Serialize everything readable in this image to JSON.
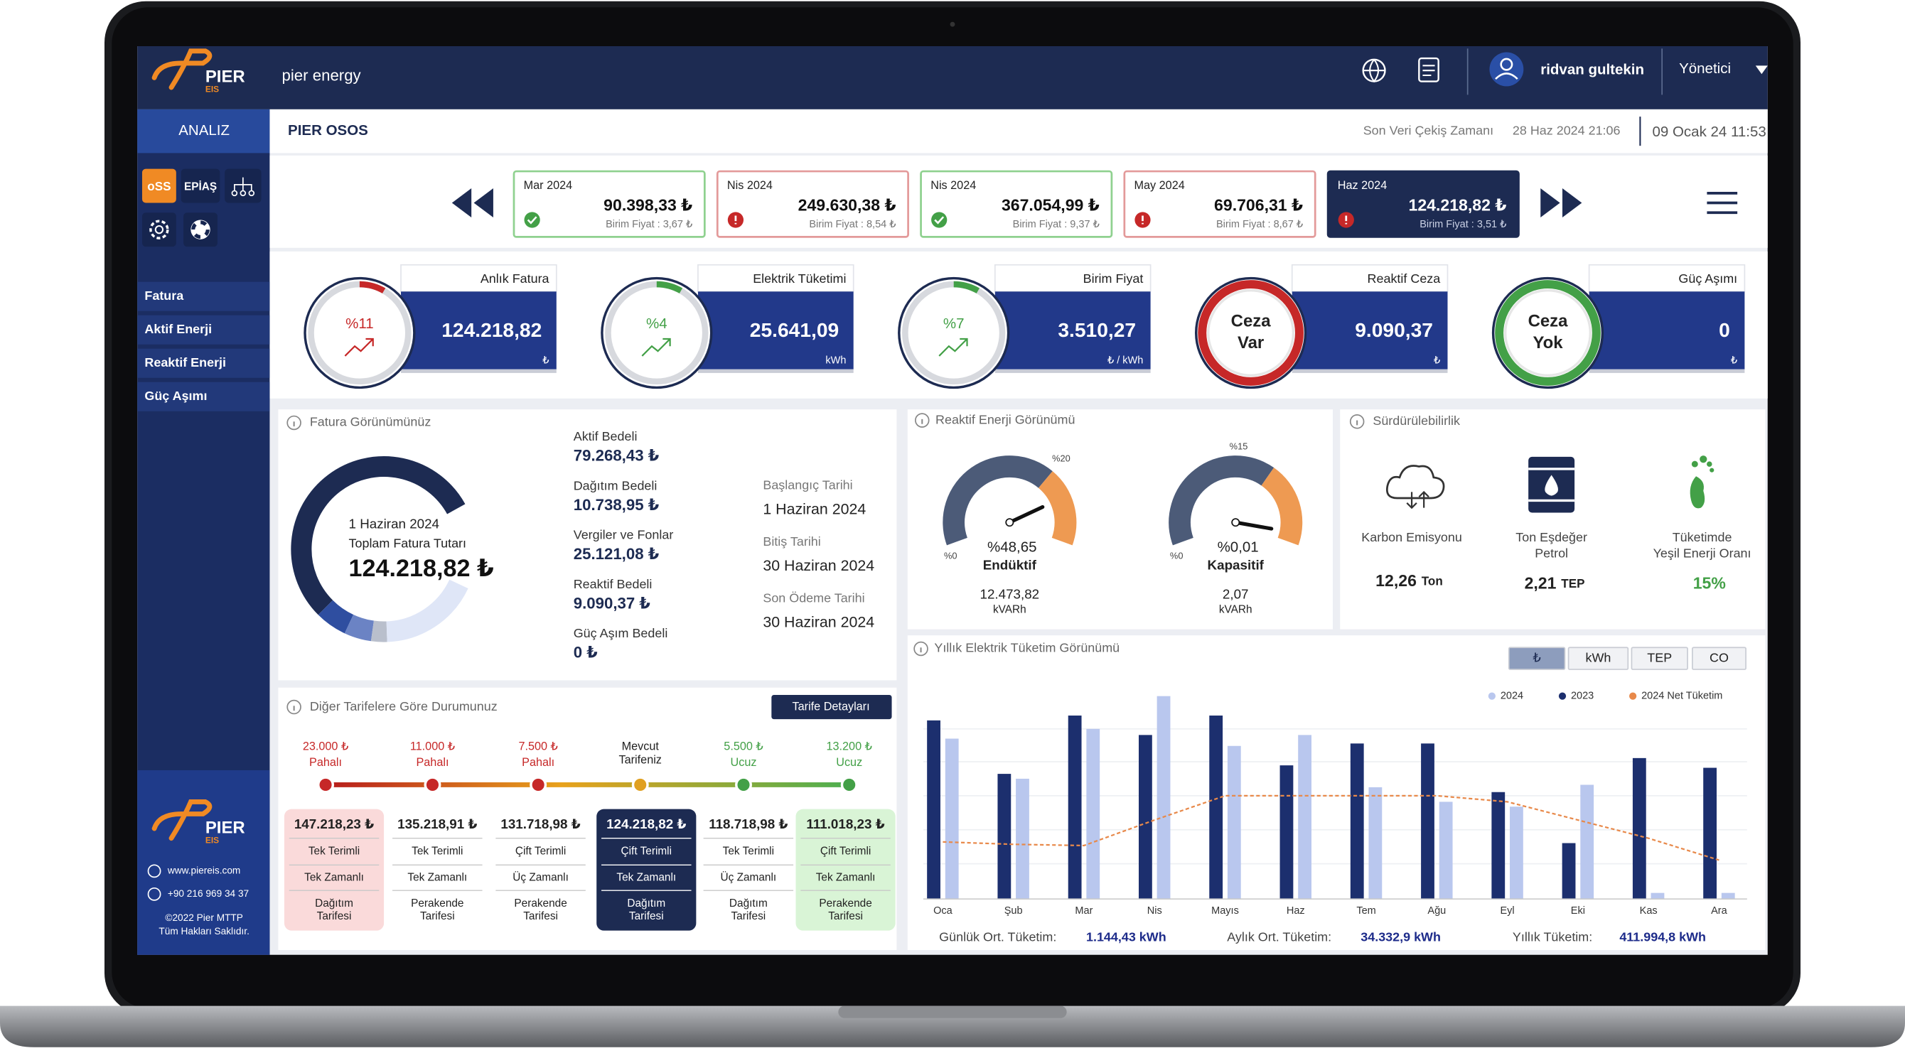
{
  "header": {
    "brand": "PIER",
    "brand_sub": "EIS",
    "app": "pier energy",
    "user": "ridvan gultekin",
    "role": "Yönetici"
  },
  "sidebar": {
    "section": "ANALIZ",
    "tools": [
      "oSS",
      "EPİAŞ"
    ],
    "menu": [
      "Fatura",
      "Aktif Enerji",
      "Reaktif Enerji",
      "Güç Aşımı"
    ],
    "footer": {
      "brand": "PIER",
      "brand_sub": "EIS",
      "website": "www.piereis.com",
      "phone": "+90 216 969 34 37",
      "copyright": [
        "©2022 Pier MTTP",
        "Tüm Hakları Saklıdır."
      ]
    }
  },
  "page": {
    "title": "PIER OSOS",
    "last_data_label": "Son Veri Çekiş Zamanı",
    "last_data_time": "28 Haz 2024 21:06",
    "now": "09 Ocak 24 11:53"
  },
  "months": [
    {
      "label": "Mar 2024",
      "amount": "90.398,33 ₺",
      "unit_price": "Birim Fiyat : 3,67 ₺",
      "status": "ok"
    },
    {
      "label": "Nis 2024",
      "amount": "249.630,38 ₺",
      "unit_price": "Birim Fiyat : 8,54 ₺",
      "status": "warn"
    },
    {
      "label": "Nis 2024",
      "amount": "367.054,99 ₺",
      "unit_price": "Birim Fiyat : 9,37 ₺",
      "status": "ok"
    },
    {
      "label": "May 2024",
      "amount": "69.706,31 ₺",
      "unit_price": "Birim Fiyat : 8,67 ₺",
      "status": "warn"
    },
    {
      "label": "Haz 2024",
      "amount": "124.218,82 ₺",
      "unit_price": "Birim Fiyat : 3,51 ₺",
      "status": "warn",
      "selected": true
    }
  ],
  "kpis": [
    {
      "title": "Anlık Fatura",
      "badge": "%11",
      "value": "124.218,82",
      "unit": "₺",
      "color": "#c62828",
      "ring": "partial"
    },
    {
      "title": "Elektrik Tüketimi",
      "badge": "%4",
      "value": "25.641,09",
      "unit": "kWh",
      "color": "#43a047",
      "ring": "partial"
    },
    {
      "title": "Birim Fiyat",
      "badge": "%7",
      "value": "3.510,27",
      "unit": "₺ / kWh",
      "color": "#43a047",
      "ring": "partial"
    },
    {
      "title": "Reaktif Ceza",
      "badge": [
        "Ceza",
        "Var"
      ],
      "value": "9.090,37",
      "unit": "₺",
      "color": "#c62828",
      "ring": "full"
    },
    {
      "title": "Güç Aşımı",
      "badge": [
        "Ceza",
        "Yok"
      ],
      "value": "0",
      "unit": "₺",
      "color": "#43a047",
      "ring": "full"
    }
  ],
  "invoice": {
    "title": "Fatura Görünümünüz",
    "center_date": "1 Haziran 2024",
    "center_label": "Toplam Fatura Tutarı",
    "total": "124.218,82 ₺",
    "items": [
      {
        "label": "Aktif Bedeli",
        "value": "79.268,43 ₺"
      },
      {
        "label": "Dağıtım Bedeli",
        "value": "10.738,95 ₺"
      },
      {
        "label": "Vergiler ve Fonlar",
        "value": "25.121,08 ₺"
      },
      {
        "label": "Reaktif Bedeli",
        "value": "9.090,37 ₺"
      },
      {
        "label": "Güç Aşım Bedeli",
        "value": "0 ₺"
      }
    ],
    "dates": [
      {
        "label": "Başlangıç Tarihi",
        "value": "1 Haziran 2024"
      },
      {
        "label": "Bitiş Tarihi",
        "value": "30 Haziran 2024"
      },
      {
        "label": "Son Ödeme Tarihi",
        "value": "30 Haziran 2024"
      }
    ]
  },
  "reactive": {
    "title": "Reaktif Enerji Görünümü",
    "gauges": [
      {
        "min": "%0",
        "max": "%20",
        "percent": "%48,65",
        "name": "Endüktif",
        "value": "12.473,82",
        "unit": "kVARh"
      },
      {
        "min": "%0",
        "max": "%15",
        "percent": "%0,01",
        "name": "Kapasitif",
        "value": "2,07",
        "unit": "kVARh"
      }
    ]
  },
  "sustainability": {
    "title": "Sürdürülebilirlik",
    "items": [
      {
        "label": [
          "Karbon Emisyonu"
        ],
        "value": "12,26",
        "unit": "Ton"
      },
      {
        "label": [
          "Ton Eşdeğer",
          "Petrol"
        ],
        "value": "2,21",
        "unit": "TEP"
      },
      {
        "label": [
          "Tüketimde",
          "Yeşil Enerji Oranı"
        ],
        "value": "15%"
      }
    ]
  },
  "tariffs": {
    "title": "Diğer Tarifelere Göre Durumunuz",
    "button": "Tarife Detayları",
    "scale": [
      {
        "price": "23.000 ₺",
        "label": "Pahalı"
      },
      {
        "price": "11.000 ₺",
        "label": "Pahalı"
      },
      {
        "price": "7.500 ₺",
        "label": "Pahalı"
      },
      {
        "label": [
          "Mevcut",
          "Tarifeniz"
        ]
      },
      {
        "price": "5.500 ₺",
        "label": "Ucuz"
      },
      {
        "price": "13.200 ₺",
        "label": "Ucuz"
      }
    ],
    "cards": [
      {
        "amount": "147.218,23 ₺",
        "tone": "red",
        "lines": [
          "Tek Terimli",
          "Tek Zamanlı",
          [
            "Dağıtım",
            "Tarifesi"
          ]
        ]
      },
      {
        "amount": "135.218,91 ₺",
        "tone": "plain",
        "lines": [
          "Tek Terimli",
          "Tek Zamanlı",
          [
            "Perakende",
            "Tarifesi"
          ]
        ]
      },
      {
        "amount": "131.718,98 ₺",
        "tone": "plain",
        "lines": [
          "Çift Terimli",
          "Üç Zamanlı",
          [
            "Perakende",
            "Tarifesi"
          ]
        ]
      },
      {
        "amount": "124.218,82 ₺",
        "tone": "selected",
        "lines": [
          "Çift Terimli",
          "Tek Zamanlı",
          [
            "Dağıtım",
            "Tarifesi"
          ]
        ]
      },
      {
        "amount": "118.718,98 ₺",
        "tone": "plain",
        "lines": [
          "Tek Terimli",
          "Üç Zamanlı",
          [
            "Dağıtım",
            "Tarifesi"
          ]
        ]
      },
      {
        "amount": "111.018,23 ₺",
        "tone": "green",
        "lines": [
          "Çift Terimli",
          "Tek Zamanlı",
          [
            "Perakende",
            "Tarifesi"
          ]
        ]
      }
    ]
  },
  "yearly": {
    "title": "Yıllık Elektrik Tüketim Görünümü",
    "tabs": [
      "₺",
      "kWh",
      "TEP",
      "CO"
    ],
    "chart": {
      "type": "bar",
      "categories": [
        "Oca",
        "Şub",
        "Mar",
        "Nis",
        "Mayıs",
        "Haz",
        "Tem",
        "Ağu",
        "Eyl",
        "Eki",
        "Kas",
        "Ara"
      ],
      "series": [
        {
          "name": "2024",
          "color": "#b9c7ee",
          "values": [
            132,
            99,
            140,
            167,
            126,
            135,
            92,
            80,
            76,
            94,
            5,
            5
          ]
        },
        {
          "name": "2023",
          "color": "#1c2f6e",
          "values": [
            147,
            103,
            151,
            135,
            151,
            110,
            128,
            128,
            88,
            46,
            116,
            108
          ]
        },
        {
          "name": "2024 Net Tüketim",
          "type": "line",
          "color": "#e8894a",
          "values": [
            47,
            45,
            44,
            65,
            85,
            85,
            85,
            85,
            80,
            65,
            50,
            32
          ]
        }
      ],
      "ylim": [
        0,
        180
      ]
    },
    "summary": [
      {
        "label": "Günlük Ort. Tüketim:",
        "value": "1.144,43 kWh"
      },
      {
        "label": "Aylık Ort. Tüketim:",
        "value": "34.332,9 kWh"
      },
      {
        "label": "Yıllık Tüketim:",
        "value": "411.994,8 kWh"
      }
    ]
  }
}
